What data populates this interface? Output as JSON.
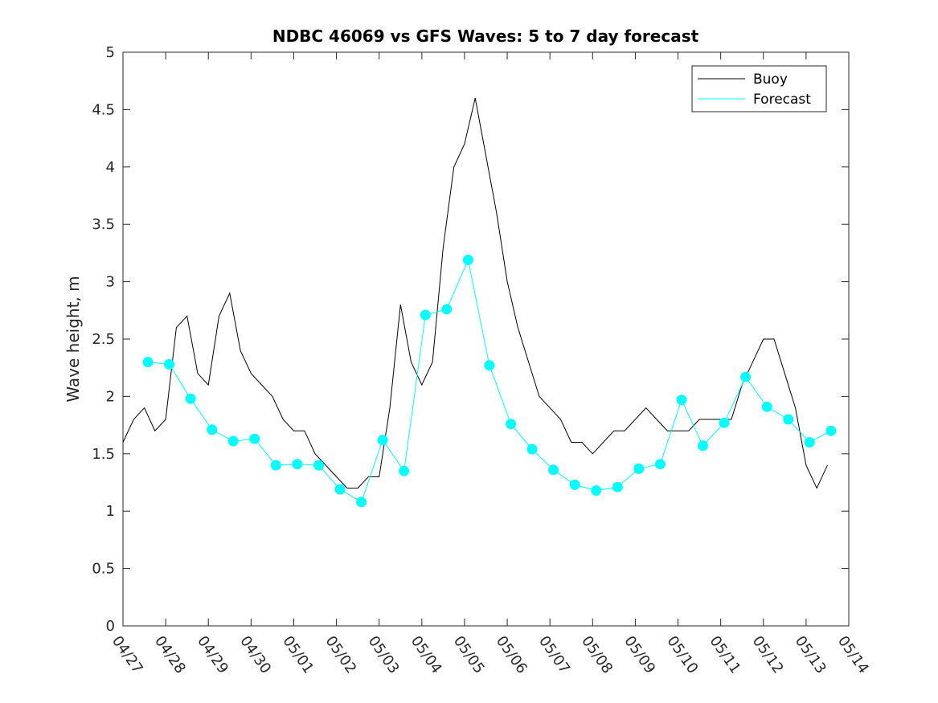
{
  "chart_data": {
    "type": "line",
    "title": "NDBC 46069 vs GFS Waves: 5 to 7 day forecast",
    "ylabel": "Wave height, m",
    "xlabel": "",
    "x_range_days": [
      "04/27",
      "05/14"
    ],
    "ylim": [
      0,
      5
    ],
    "y_ticks": [
      "0",
      "0.5",
      "1",
      "1.5",
      "2",
      "2.5",
      "3",
      "3.5",
      "4",
      "4.5",
      "5"
    ],
    "x_ticks": [
      "04/27",
      "04/28",
      "04/29",
      "04/30",
      "05/01",
      "05/02",
      "05/03",
      "05/04",
      "05/05",
      "05/06",
      "05/07",
      "05/08",
      "05/09",
      "05/10",
      "05/11",
      "05/12",
      "05/13",
      "05/14"
    ],
    "grid": false,
    "legend_position": "top-right",
    "colors": {
      "buoy": "#000000",
      "forecast": "#00ffff"
    },
    "series": [
      {
        "name": "Buoy",
        "x": [
          "04/27 00:00",
          "04/27 06:00",
          "04/27 12:00",
          "04/27 18:00",
          "04/28 00:00",
          "04/28 06:00",
          "04/28 12:00",
          "04/28 18:00",
          "04/29 00:00",
          "04/29 06:00",
          "04/29 12:00",
          "04/29 18:00",
          "04/30 00:00",
          "04/30 06:00",
          "04/30 12:00",
          "04/30 18:00",
          "05/01 00:00",
          "05/01 06:00",
          "05/01 12:00",
          "05/01 18:00",
          "05/02 00:00",
          "05/02 06:00",
          "05/02 12:00",
          "05/02 18:00",
          "05/03 00:00",
          "05/03 06:00",
          "05/03 12:00",
          "05/03 18:00",
          "05/04 00:00",
          "05/04 06:00",
          "05/04 12:00",
          "05/04 18:00",
          "05/05 00:00",
          "05/05 06:00",
          "05/05 12:00",
          "05/05 18:00",
          "05/06 00:00",
          "05/06 06:00",
          "05/06 12:00",
          "05/06 18:00",
          "05/07 00:00",
          "05/07 06:00",
          "05/07 12:00",
          "05/07 18:00",
          "05/08 00:00",
          "05/08 06:00",
          "05/08 12:00",
          "05/08 18:00",
          "05/09 00:00",
          "05/09 06:00",
          "05/09 12:00",
          "05/09 18:00",
          "05/10 00:00",
          "05/10 06:00",
          "05/10 12:00",
          "05/10 18:00",
          "05/11 00:00",
          "05/11 06:00",
          "05/11 12:00",
          "05/11 18:00",
          "05/12 00:00",
          "05/12 06:00",
          "05/12 12:00",
          "05/12 18:00",
          "05/13 00:00",
          "05/13 06:00",
          "05/13 12:00"
        ],
        "values": [
          1.6,
          1.8,
          1.9,
          1.7,
          1.8,
          2.6,
          2.7,
          2.2,
          2.1,
          2.7,
          2.9,
          2.4,
          2.2,
          2.1,
          2.0,
          1.8,
          1.7,
          1.7,
          1.5,
          1.4,
          1.3,
          1.2,
          1.2,
          1.3,
          1.3,
          1.9,
          2.8,
          2.3,
          2.1,
          2.3,
          3.3,
          4.0,
          4.2,
          4.6,
          4.1,
          3.6,
          3.0,
          2.6,
          2.3,
          2.0,
          1.9,
          1.8,
          1.6,
          1.6,
          1.5,
          1.6,
          1.7,
          1.7,
          1.8,
          1.9,
          1.8,
          1.7,
          1.7,
          1.7,
          1.8,
          1.8,
          1.8,
          1.8,
          2.1,
          2.3,
          2.5,
          2.5,
          2.2,
          1.9,
          1.4,
          1.2,
          1.4
        ]
      },
      {
        "name": "Forecast",
        "x": [
          "04/27 14:00",
          "04/28 02:00",
          "04/28 14:00",
          "04/29 02:00",
          "04/29 14:00",
          "04/30 02:00",
          "04/30 14:00",
          "05/01 02:00",
          "05/01 14:00",
          "05/02 02:00",
          "05/02 14:00",
          "05/03 02:00",
          "05/03 14:00",
          "05/04 02:00",
          "05/04 14:00",
          "05/05 02:00",
          "05/05 14:00",
          "05/06 02:00",
          "05/06 14:00",
          "05/07 02:00",
          "05/07 14:00",
          "05/08 02:00",
          "05/08 14:00",
          "05/09 02:00",
          "05/09 14:00",
          "05/10 02:00",
          "05/10 14:00",
          "05/11 02:00",
          "05/11 14:00",
          "05/12 02:00",
          "05/12 14:00",
          "05/13 02:00",
          "05/13 14:00"
        ],
        "values": [
          2.3,
          2.28,
          1.98,
          1.71,
          1.61,
          1.63,
          1.4,
          1.41,
          1.4,
          1.19,
          1.08,
          1.62,
          1.35,
          2.71,
          2.76,
          3.19,
          2.27,
          1.76,
          1.54,
          1.36,
          1.23,
          1.18,
          1.21,
          1.37,
          1.41,
          1.97,
          1.57,
          1.77,
          2.17,
          1.91,
          1.8,
          1.6,
          1.7
        ]
      }
    ]
  }
}
